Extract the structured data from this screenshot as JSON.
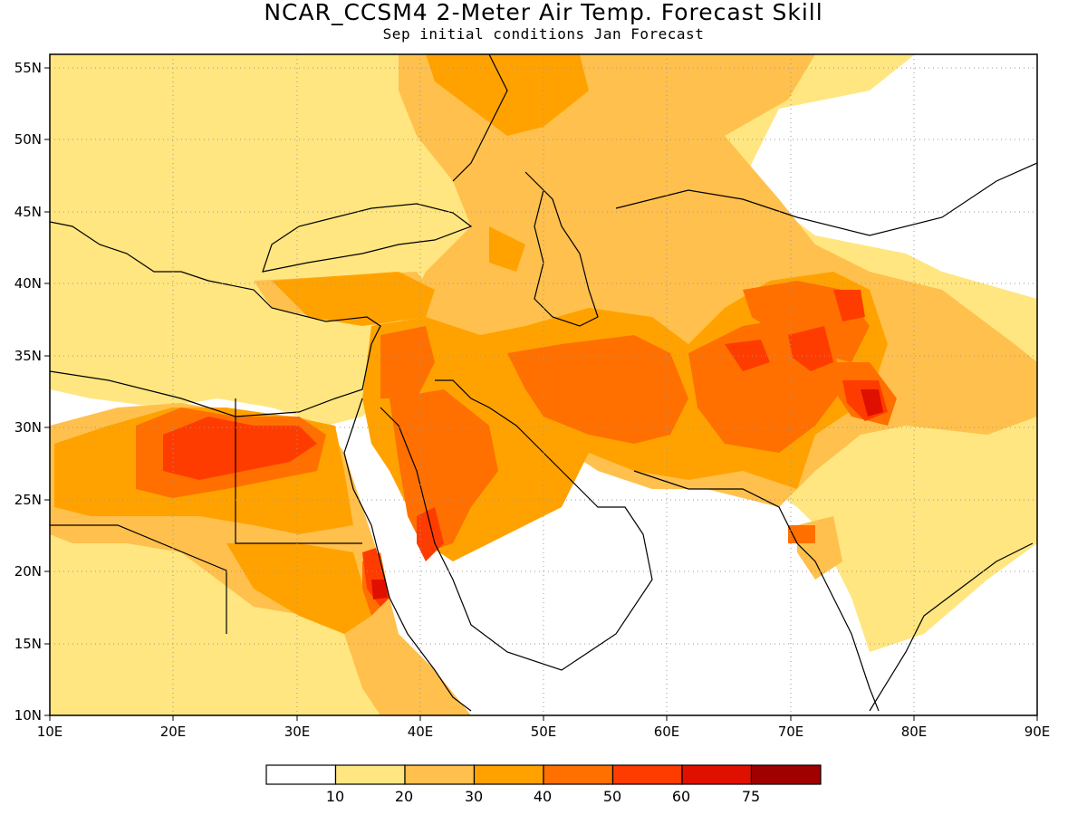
{
  "map": {
    "title": "NCAR_CCSM4 2-Meter Air Temp. Forecast Skill",
    "subtitle": "Sep initial conditions  Jan Forecast",
    "lat_labels": [
      "55N",
      "50N",
      "45N",
      "40N",
      "35N",
      "30N",
      "25N",
      "20N",
      "15N",
      "10N"
    ],
    "lon_labels": [
      "10E",
      "20E",
      "30E",
      "40E",
      "50E",
      "60E",
      "70E",
      "80E",
      "90E"
    ],
    "region": {
      "lon_range": [
        10,
        90
      ],
      "lat_range": [
        10,
        56
      ]
    },
    "gridlines": "dotted"
  },
  "colorbar": {
    "levels": [
      "10",
      "20",
      "30",
      "40",
      "50",
      "60",
      "75"
    ],
    "colors": [
      "#ffffff",
      "#ffe680",
      "#ffc04d",
      "#ffa200",
      "#ff7000",
      "#ff3c00",
      "#e01000",
      "#a00000"
    ]
  }
}
